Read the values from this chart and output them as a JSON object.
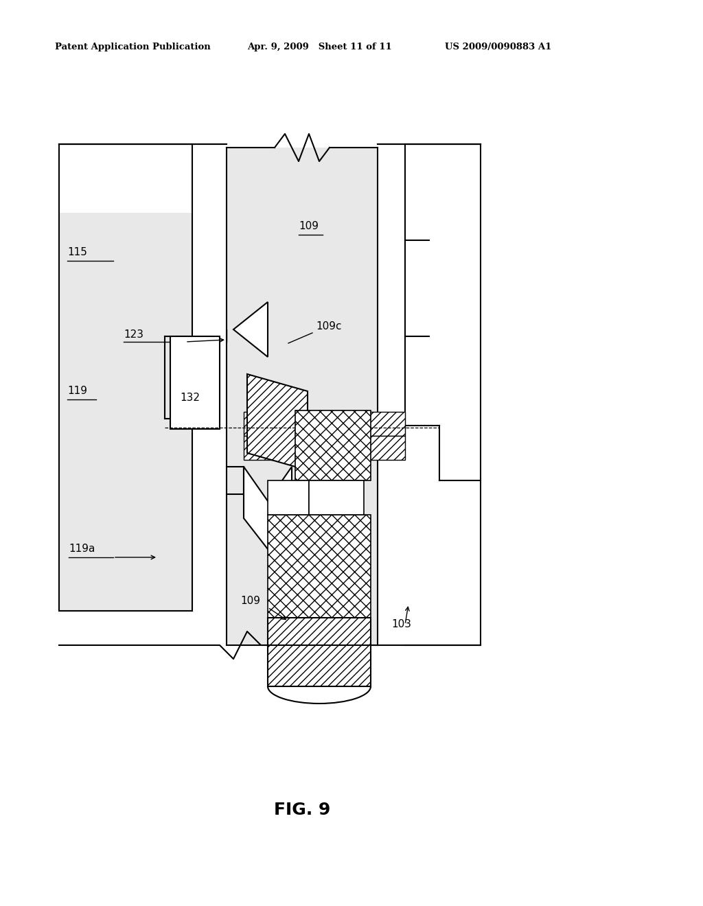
{
  "title": "FIG. 9",
  "patent_header_left": "Patent Application Publication",
  "patent_header_mid": "Apr. 9, 2009   Sheet 11 of 11",
  "patent_header_right": "US 2009/0090883 A1",
  "bg_color": "#ffffff",
  "fig_width": 10.24,
  "fig_height": 13.2,
  "dpi": 100
}
